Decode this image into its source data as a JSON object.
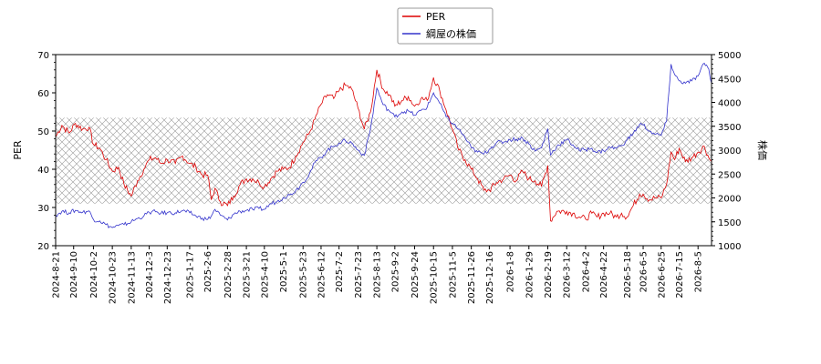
{
  "chart_data": {
    "type": "line",
    "title": "",
    "legend_position": "top-center",
    "grid": false,
    "hatched_band_note_free": true,
    "x": {
      "tick_labels": [
        "2024-8-21",
        "2024-9-10",
        "2024-10-2",
        "2024-10-23",
        "2024-11-13",
        "2024-12-3",
        "2024-12-23",
        "2025-1-17",
        "2025-2-6",
        "2025-2-28",
        "2025-3-21",
        "2025-4-10",
        "2025-5-1",
        "2025-5-23",
        "2025-6-12",
        "2025-7-2",
        "2025-7-23",
        "2025-8-13",
        "2025-9-2",
        "2025-9-24",
        "2025-10-15",
        "2025-11-5",
        "2025-11-26",
        "2025-12-16",
        "2026-1-8",
        "2026-1-29",
        "2026-2-19",
        "2026-3-12",
        "2026-4-2",
        "2026-4-22",
        "2026-5-18",
        "2026-6-5",
        "2026-6-25",
        "2026-7-15",
        "2026-8-5"
      ],
      "range": [
        "2024-8-21",
        "2026-8-20"
      ]
    },
    "y_left": {
      "label": "PER",
      "ylim": [
        20,
        70
      ],
      "ticks": [
        20,
        30,
        40,
        50,
        60,
        70
      ]
    },
    "y_right": {
      "label": "株価",
      "ylim": [
        1000,
        5000
      ],
      "ticks": [
        1000,
        1500,
        2000,
        2500,
        3000,
        3500,
        4000,
        4500,
        5000
      ]
    },
    "hatched_band": {
      "axis": "left",
      "from": 31,
      "to": 53.5
    },
    "series": [
      {
        "name": "PER",
        "axis": "left",
        "color": "#dd0000",
        "points": [
          [
            "2024-8-21",
            48.5
          ],
          [
            "2024-8-28",
            51.5
          ],
          [
            "2024-9-5",
            49.5
          ],
          [
            "2024-9-12",
            52
          ],
          [
            "2024-9-20",
            50.5
          ],
          [
            "2024-9-27",
            51
          ],
          [
            "2024-10-2",
            46.5
          ],
          [
            "2024-10-9",
            45.5
          ],
          [
            "2024-10-16",
            42.5
          ],
          [
            "2024-10-23",
            39.5
          ],
          [
            "2024-10-30",
            40.5
          ],
          [
            "2024-11-5",
            36
          ],
          [
            "2024-11-13",
            33
          ],
          [
            "2024-11-20",
            37
          ],
          [
            "2024-11-27",
            40
          ],
          [
            "2024-12-3",
            42.5
          ],
          [
            "2024-12-10",
            43
          ],
          [
            "2024-12-16",
            41.5
          ],
          [
            "2024-12-23",
            42.5
          ],
          [
            "2025-1-1",
            41.5
          ],
          [
            "2025-1-9",
            43.5
          ],
          [
            "2025-1-17",
            41.5
          ],
          [
            "2025-1-24",
            40.5
          ],
          [
            "2025-1-31",
            38.5
          ],
          [
            "2025-2-6",
            38.5
          ],
          [
            "2025-2-10",
            32
          ],
          [
            "2025-2-14",
            35
          ],
          [
            "2025-2-20",
            31.5
          ],
          [
            "2025-2-28",
            30.5
          ],
          [
            "2025-3-7",
            33
          ],
          [
            "2025-3-14",
            36
          ],
          [
            "2025-3-21",
            37.5
          ],
          [
            "2025-3-28",
            37.5
          ],
          [
            "2025-4-4",
            36.5
          ],
          [
            "2025-4-10",
            35.5
          ],
          [
            "2025-4-17",
            37.5
          ],
          [
            "2025-4-24",
            39.5
          ],
          [
            "2025-5-1",
            40
          ],
          [
            "2025-5-8",
            40.5
          ],
          [
            "2025-5-15",
            43.5
          ],
          [
            "2025-5-23",
            47
          ],
          [
            "2025-5-30",
            49.5
          ],
          [
            "2025-6-5",
            53
          ],
          [
            "2025-6-12",
            57
          ],
          [
            "2025-6-19",
            59.5
          ],
          [
            "2025-6-26",
            58.5
          ],
          [
            "2025-7-2",
            60.5
          ],
          [
            "2025-7-9",
            62
          ],
          [
            "2025-7-16",
            61
          ],
          [
            "2025-7-23",
            56
          ],
          [
            "2025-7-30",
            50.5
          ],
          [
            "2025-8-6",
            55
          ],
          [
            "2025-8-13",
            66
          ],
          [
            "2025-8-20",
            61
          ],
          [
            "2025-8-27",
            59.5
          ],
          [
            "2025-9-2",
            56.5
          ],
          [
            "2025-9-10",
            58
          ],
          [
            "2025-9-17",
            59
          ],
          [
            "2025-9-24",
            56.5
          ],
          [
            "2025-10-1",
            58.5
          ],
          [
            "2025-10-8",
            58
          ],
          [
            "2025-10-15",
            64
          ],
          [
            "2025-10-22",
            60.5
          ],
          [
            "2025-10-29",
            55.5
          ],
          [
            "2025-11-5",
            50.5
          ],
          [
            "2025-11-12",
            45
          ],
          [
            "2025-11-19",
            42.5
          ],
          [
            "2025-11-26",
            40
          ],
          [
            "2025-12-3",
            37.5
          ],
          [
            "2025-12-10",
            34.5
          ],
          [
            "2025-12-16",
            34.5
          ],
          [
            "2025-12-24",
            36.5
          ],
          [
            "2026-1-1",
            37.5
          ],
          [
            "2026-1-8",
            38.5
          ],
          [
            "2026-1-15",
            37
          ],
          [
            "2026-1-22",
            39.5
          ],
          [
            "2026-1-29",
            37.5
          ],
          [
            "2026-2-5",
            37
          ],
          [
            "2026-2-12",
            35.5
          ],
          [
            "2026-2-19",
            41
          ],
          [
            "2026-2-22",
            26.5
          ],
          [
            "2026-3-1",
            29
          ],
          [
            "2026-3-12",
            29
          ],
          [
            "2026-3-19",
            28.5
          ],
          [
            "2026-3-26",
            27.5
          ],
          [
            "2026-4-2",
            27
          ],
          [
            "2026-4-9",
            28.5
          ],
          [
            "2026-4-15",
            27.5
          ],
          [
            "2026-4-22",
            28.5
          ],
          [
            "2026-4-29",
            28.5
          ],
          [
            "2026-5-6",
            27.5
          ],
          [
            "2026-5-12",
            28.5
          ],
          [
            "2026-5-18",
            27.5
          ],
          [
            "2026-5-25",
            30.5
          ],
          [
            "2026-6-1",
            33.5
          ],
          [
            "2026-6-5",
            33.5
          ],
          [
            "2026-6-12",
            32
          ],
          [
            "2026-6-18",
            32.5
          ],
          [
            "2026-6-25",
            32.5
          ],
          [
            "2026-7-1",
            36
          ],
          [
            "2026-7-6",
            44.5
          ],
          [
            "2026-7-10",
            42.5
          ],
          [
            "2026-7-15",
            45.5
          ],
          [
            "2026-7-22",
            42
          ],
          [
            "2026-7-29",
            43
          ],
          [
            "2026-8-5",
            44.5
          ],
          [
            "2026-8-12",
            46
          ],
          [
            "2026-8-17",
            43
          ],
          [
            "2026-8-20",
            42
          ]
        ]
      },
      {
        "name": "綱屋の株価",
        "axis": "right",
        "color": "#3333cc",
        "points": [
          [
            "2024-8-21",
            1640
          ],
          [
            "2024-8-28",
            1720
          ],
          [
            "2024-9-5",
            1690
          ],
          [
            "2024-9-12",
            1740
          ],
          [
            "2024-9-20",
            1700
          ],
          [
            "2024-9-27",
            1730
          ],
          [
            "2024-10-2",
            1550
          ],
          [
            "2024-10-9",
            1520
          ],
          [
            "2024-10-16",
            1440
          ],
          [
            "2024-10-23",
            1380
          ],
          [
            "2024-10-30",
            1420
          ],
          [
            "2024-11-5",
            1440
          ],
          [
            "2024-11-13",
            1500
          ],
          [
            "2024-11-20",
            1570
          ],
          [
            "2024-11-27",
            1620
          ],
          [
            "2024-12-3",
            1700
          ],
          [
            "2024-12-10",
            1710
          ],
          [
            "2024-12-16",
            1680
          ],
          [
            "2024-12-23",
            1690
          ],
          [
            "2025-1-1",
            1690
          ],
          [
            "2025-1-9",
            1730
          ],
          [
            "2025-1-17",
            1690
          ],
          [
            "2025-1-24",
            1620
          ],
          [
            "2025-1-31",
            1580
          ],
          [
            "2025-2-6",
            1550
          ],
          [
            "2025-2-10",
            1620
          ],
          [
            "2025-2-14",
            1760
          ],
          [
            "2025-2-20",
            1640
          ],
          [
            "2025-2-28",
            1540
          ],
          [
            "2025-3-7",
            1660
          ],
          [
            "2025-3-14",
            1720
          ],
          [
            "2025-3-21",
            1740
          ],
          [
            "2025-3-28",
            1760
          ],
          [
            "2025-4-4",
            1780
          ],
          [
            "2025-4-10",
            1760
          ],
          [
            "2025-4-17",
            1880
          ],
          [
            "2025-4-24",
            1920
          ],
          [
            "2025-5-1",
            2010
          ],
          [
            "2025-5-8",
            2060
          ],
          [
            "2025-5-15",
            2160
          ],
          [
            "2025-5-23",
            2330
          ],
          [
            "2025-5-30",
            2500
          ],
          [
            "2025-6-5",
            2740
          ],
          [
            "2025-6-12",
            2850
          ],
          [
            "2025-6-19",
            3000
          ],
          [
            "2025-6-26",
            3080
          ],
          [
            "2025-7-2",
            3150
          ],
          [
            "2025-7-9",
            3200
          ],
          [
            "2025-7-16",
            3150
          ],
          [
            "2025-7-23",
            3000
          ],
          [
            "2025-7-30",
            2890
          ],
          [
            "2025-8-6",
            3450
          ],
          [
            "2025-8-13",
            4300
          ],
          [
            "2025-8-20",
            3950
          ],
          [
            "2025-8-27",
            3820
          ],
          [
            "2025-9-2",
            3700
          ],
          [
            "2025-9-10",
            3800
          ],
          [
            "2025-9-17",
            3820
          ],
          [
            "2025-9-24",
            3730
          ],
          [
            "2025-10-1",
            3830
          ],
          [
            "2025-10-8",
            3900
          ],
          [
            "2025-10-15",
            4200
          ],
          [
            "2025-10-22",
            3980
          ],
          [
            "2025-10-29",
            3700
          ],
          [
            "2025-11-5",
            3560
          ],
          [
            "2025-11-12",
            3440
          ],
          [
            "2025-11-19",
            3260
          ],
          [
            "2025-11-26",
            3050
          ],
          [
            "2025-12-3",
            2960
          ],
          [
            "2025-12-10",
            2920
          ],
          [
            "2025-12-16",
            3020
          ],
          [
            "2025-12-24",
            3160
          ],
          [
            "2026-1-1",
            3170
          ],
          [
            "2026-1-8",
            3220
          ],
          [
            "2026-1-15",
            3230
          ],
          [
            "2026-1-22",
            3250
          ],
          [
            "2026-1-29",
            3130
          ],
          [
            "2026-2-5",
            2980
          ],
          [
            "2026-2-12",
            3050
          ],
          [
            "2026-2-19",
            3450
          ],
          [
            "2026-2-22",
            2900
          ],
          [
            "2026-3-1",
            3080
          ],
          [
            "2026-3-12",
            3220
          ],
          [
            "2026-3-19",
            3110
          ],
          [
            "2026-3-26",
            2990
          ],
          [
            "2026-4-2",
            3010
          ],
          [
            "2026-4-9",
            3040
          ],
          [
            "2026-4-15",
            2950
          ],
          [
            "2026-4-22",
            2990
          ],
          [
            "2026-4-29",
            3060
          ],
          [
            "2026-5-6",
            3040
          ],
          [
            "2026-5-12",
            3100
          ],
          [
            "2026-5-18",
            3210
          ],
          [
            "2026-5-25",
            3350
          ],
          [
            "2026-6-1",
            3540
          ],
          [
            "2026-6-5",
            3530
          ],
          [
            "2026-6-12",
            3400
          ],
          [
            "2026-6-18",
            3330
          ],
          [
            "2026-6-25",
            3310
          ],
          [
            "2026-7-1",
            3600
          ],
          [
            "2026-7-6",
            4800
          ],
          [
            "2026-7-10",
            4580
          ],
          [
            "2026-7-15",
            4450
          ],
          [
            "2026-7-22",
            4400
          ],
          [
            "2026-7-29",
            4450
          ],
          [
            "2026-8-5",
            4550
          ],
          [
            "2026-8-12",
            4820
          ],
          [
            "2026-8-17",
            4700
          ],
          [
            "2026-8-20",
            4400
          ]
        ]
      }
    ]
  }
}
